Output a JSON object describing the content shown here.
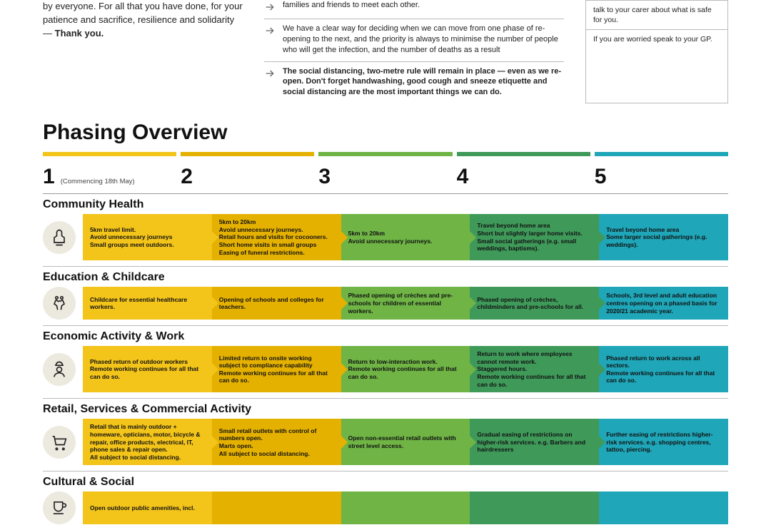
{
  "top": {
    "left_html": "by everyone. For all that you have done, for your patience and sacrifice, resilience and solidarity — <b>Thank you.</b>",
    "mid": [
      "families and friends to meet each other.",
      "We have a clear way for deciding when we can move from one phase of re-opening to the next, and the priority is always to minimise the number of people who will get the infection, and the number of deaths as a result",
      "<b>The social distancing, two-metre rule will remain in place — even as we re-open. Don't forget handwashing, good cough and sneeze etiquette and social distancing are the most important things we can do.</b>"
    ],
    "right": [
      "talk to your carer about what is safe for you.",
      "If you are worried speak to your GP."
    ]
  },
  "overview_title": "Phasing Overview",
  "phases": [
    {
      "num": "1",
      "sub": "(Commencing 18th May)",
      "color": "#f3c41a",
      "arrow": "#f3c41a"
    },
    {
      "num": "2",
      "sub": "",
      "color": "#e5b100",
      "arrow": "#e5b100"
    },
    {
      "num": "3",
      "sub": "",
      "color": "#6fb445",
      "arrow": "#6fb445"
    },
    {
      "num": "4",
      "sub": "",
      "color": "#3f9a5a",
      "arrow": "#3f9a5a"
    },
    {
      "num": "5",
      "sub": "",
      "color": "#1fa6b8",
      "arrow": "#1fa6b8"
    }
  ],
  "categories": [
    {
      "title": "Community Health",
      "icon": "hands",
      "cells": [
        "5km travel limit.\nAvoid unnecessary journeys\nSmall groups meet outdoors.",
        "5km to 20km\nAvoid unnecessary journeys.\nRetail hours and visits for cocooners.\nShort home visits in small groups\nEasing of funeral restrictions.",
        "5km to 20km\nAvoid unnecessary journeys.",
        "Travel beyond home area\nShort but slightly larger home visits.\nSmall social gatherings (e.g. small weddings, baptisms).",
        "Travel beyond home area\nSome larger social gatherings (e.g. weddings)."
      ]
    },
    {
      "title": "Education & Childcare",
      "icon": "walk",
      "cells": [
        "Childcare for essential healthcare workers.",
        "Opening of schools and colleges for teachers.",
        "Phased opening of crèches and pre-schools for children of essential workers.",
        "Phased opening of crèches, childminders and pre-schools for all.",
        "Schools, 3rd level and adult education centres opening on a phased basis for 2020/21 academic year."
      ]
    },
    {
      "title": "Economic Activity & Work",
      "icon": "worker",
      "cells": [
        "Phased return of outdoor workers\nRemote working continues for all that can do so.",
        "Limited return to onsite working subject to compliance capability\nRemote working continues for all that can do so.",
        "Return to low-interaction work.\nRemote working continues for all that can do so.",
        "Return to work where employees cannot remote work.\nStaggered hours.\nRemote working continues for all that can do so.",
        "Phased return to work across all sectors.\nRemote working continues for all that can do so."
      ]
    },
    {
      "title": "Retail, Services & Commercial Activity",
      "icon": "cart",
      "cells": [
        "Retail that is mainly outdoor + homeware, opticians, motor, bicycle & repair, office products, electrical, IT, phone sales & repair open.\nAll subject to social distancing.",
        "Small retail outlets with control of numbers open.\nMarts open.\nAll subject to social distancing.",
        "Open non-essential retail outlets with street level access.",
        "Gradual easing of restrictions on higher-risk services. e.g. Barbers and hairdressers",
        "Further easing of restrictions higher-risk services. e.g. shopping centres, tattoo, piercing."
      ]
    },
    {
      "title": "Cultural & Social",
      "icon": "cup",
      "partial": true,
      "cells": [
        "Open outdoor public amenities, incl.",
        "",
        "",
        "",
        ""
      ]
    }
  ],
  "colors": {
    "icon_bg": "#ece9df",
    "rule": "#bbbbbb"
  }
}
